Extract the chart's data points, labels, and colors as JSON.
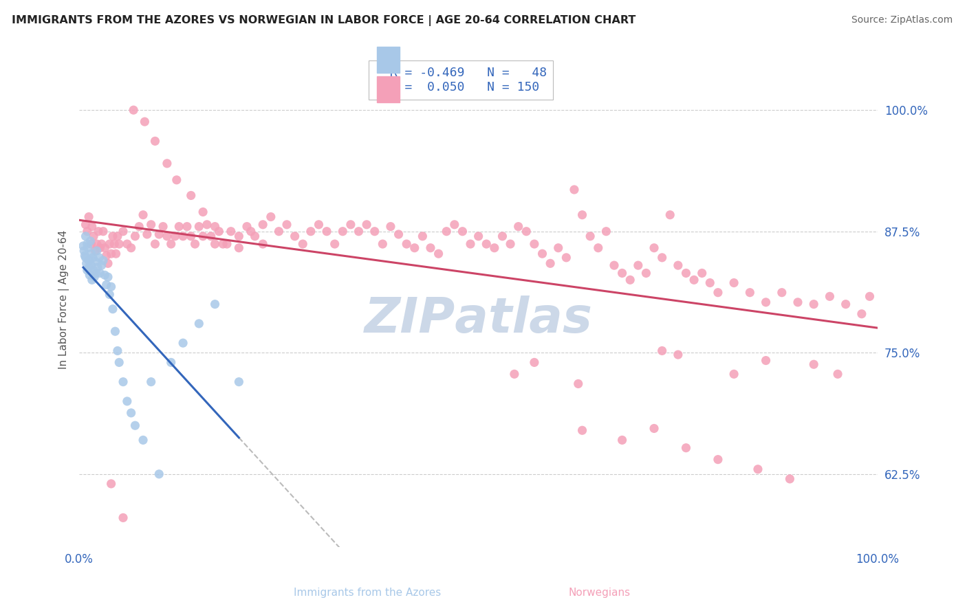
{
  "title": "IMMIGRANTS FROM THE AZORES VS NORWEGIAN IN LABOR FORCE | AGE 20-64 CORRELATION CHART",
  "source": "Source: ZipAtlas.com",
  "ylabel": "In Labor Force | Age 20-64",
  "legend_label_1": "Immigrants from the Azores",
  "legend_label_2": "Norwegians",
  "color_azores": "#a8c8e8",
  "color_norwegian": "#f4a0b8",
  "color_azores_line": "#3366bb",
  "color_norwegian_line": "#cc4466",
  "color_dashed": "#bbbbbb",
  "background_color": "#ffffff",
  "watermark_color": "#ccd8e8",
  "ytick_labels": [
    "62.5%",
    "75.0%",
    "87.5%",
    "100.0%"
  ],
  "ytick_values": [
    0.625,
    0.75,
    0.875,
    1.0
  ],
  "xmin": 0.0,
  "xmax": 1.0,
  "ymin": 0.55,
  "ymax": 1.06,
  "azores_x": [
    0.005,
    0.006,
    0.007,
    0.008,
    0.008,
    0.009,
    0.01,
    0.01,
    0.011,
    0.012,
    0.012,
    0.013,
    0.014,
    0.015,
    0.015,
    0.016,
    0.017,
    0.018,
    0.019,
    0.02,
    0.021,
    0.022,
    0.023,
    0.025,
    0.026,
    0.028,
    0.03,
    0.032,
    0.034,
    0.036,
    0.038,
    0.04,
    0.042,
    0.045,
    0.048,
    0.05,
    0.055,
    0.06,
    0.065,
    0.07,
    0.08,
    0.09,
    0.1,
    0.115,
    0.13,
    0.15,
    0.17,
    0.2
  ],
  "azores_y": [
    0.86,
    0.855,
    0.85,
    0.87,
    0.848,
    0.842,
    0.862,
    0.835,
    0.858,
    0.845,
    0.838,
    0.83,
    0.865,
    0.852,
    0.84,
    0.825,
    0.848,
    0.835,
    0.828,
    0.844,
    0.832,
    0.855,
    0.838,
    0.848,
    0.832,
    0.84,
    0.845,
    0.83,
    0.82,
    0.828,
    0.81,
    0.818,
    0.795,
    0.772,
    0.752,
    0.74,
    0.72,
    0.7,
    0.688,
    0.675,
    0.66,
    0.72,
    0.625,
    0.74,
    0.76,
    0.78,
    0.8,
    0.72
  ],
  "norwegian_x": [
    0.008,
    0.01,
    0.012,
    0.015,
    0.016,
    0.018,
    0.02,
    0.022,
    0.024,
    0.026,
    0.028,
    0.03,
    0.032,
    0.034,
    0.036,
    0.038,
    0.04,
    0.042,
    0.044,
    0.046,
    0.048,
    0.05,
    0.055,
    0.06,
    0.065,
    0.07,
    0.075,
    0.08,
    0.085,
    0.09,
    0.095,
    0.1,
    0.105,
    0.11,
    0.115,
    0.12,
    0.125,
    0.13,
    0.135,
    0.14,
    0.145,
    0.15,
    0.155,
    0.16,
    0.165,
    0.17,
    0.175,
    0.18,
    0.19,
    0.2,
    0.21,
    0.22,
    0.23,
    0.24,
    0.25,
    0.26,
    0.27,
    0.28,
    0.29,
    0.3,
    0.31,
    0.32,
    0.33,
    0.34,
    0.35,
    0.36,
    0.37,
    0.38,
    0.39,
    0.4,
    0.41,
    0.42,
    0.43,
    0.44,
    0.45,
    0.46,
    0.47,
    0.48,
    0.49,
    0.5,
    0.51,
    0.52,
    0.53,
    0.54,
    0.55,
    0.56,
    0.57,
    0.58,
    0.59,
    0.6,
    0.61,
    0.62,
    0.63,
    0.64,
    0.65,
    0.66,
    0.67,
    0.68,
    0.69,
    0.7,
    0.71,
    0.72,
    0.73,
    0.74,
    0.75,
    0.76,
    0.77,
    0.78,
    0.79,
    0.8,
    0.82,
    0.84,
    0.86,
    0.88,
    0.9,
    0.92,
    0.94,
    0.96,
    0.98,
    0.99,
    0.545,
    0.625,
    0.73,
    0.75,
    0.82,
    0.86,
    0.92,
    0.95,
    0.57,
    0.63,
    0.68,
    0.72,
    0.76,
    0.8,
    0.85,
    0.89,
    0.04,
    0.055,
    0.068,
    0.082,
    0.095,
    0.11,
    0.122,
    0.14,
    0.155,
    0.17,
    0.185,
    0.2,
    0.215,
    0.23
  ],
  "norwegian_y": [
    0.882,
    0.875,
    0.89,
    0.862,
    0.88,
    0.87,
    0.855,
    0.862,
    0.875,
    0.858,
    0.862,
    0.875,
    0.858,
    0.85,
    0.842,
    0.862,
    0.852,
    0.87,
    0.862,
    0.852,
    0.87,
    0.862,
    0.875,
    0.862,
    0.858,
    0.87,
    0.88,
    0.892,
    0.872,
    0.882,
    0.862,
    0.872,
    0.88,
    0.87,
    0.862,
    0.87,
    0.88,
    0.87,
    0.88,
    0.87,
    0.862,
    0.88,
    0.87,
    0.882,
    0.87,
    0.862,
    0.875,
    0.862,
    0.875,
    0.87,
    0.88,
    0.87,
    0.882,
    0.89,
    0.875,
    0.882,
    0.87,
    0.862,
    0.875,
    0.882,
    0.875,
    0.862,
    0.875,
    0.882,
    0.875,
    0.882,
    0.875,
    0.862,
    0.88,
    0.872,
    0.862,
    0.858,
    0.87,
    0.858,
    0.852,
    0.875,
    0.882,
    0.875,
    0.862,
    0.87,
    0.862,
    0.858,
    0.87,
    0.862,
    0.88,
    0.875,
    0.862,
    0.852,
    0.842,
    0.858,
    0.848,
    0.918,
    0.892,
    0.87,
    0.858,
    0.875,
    0.84,
    0.832,
    0.825,
    0.84,
    0.832,
    0.858,
    0.848,
    0.892,
    0.84,
    0.832,
    0.825,
    0.832,
    0.822,
    0.812,
    0.822,
    0.812,
    0.802,
    0.812,
    0.802,
    0.8,
    0.808,
    0.8,
    0.79,
    0.808,
    0.728,
    0.718,
    0.752,
    0.748,
    0.728,
    0.742,
    0.738,
    0.728,
    0.74,
    0.67,
    0.66,
    0.672,
    0.652,
    0.64,
    0.63,
    0.62,
    0.615,
    0.58,
    1.0,
    0.988,
    0.968,
    0.945,
    0.928,
    0.912,
    0.895,
    0.88,
    0.862,
    0.858,
    0.875,
    0.862
  ]
}
